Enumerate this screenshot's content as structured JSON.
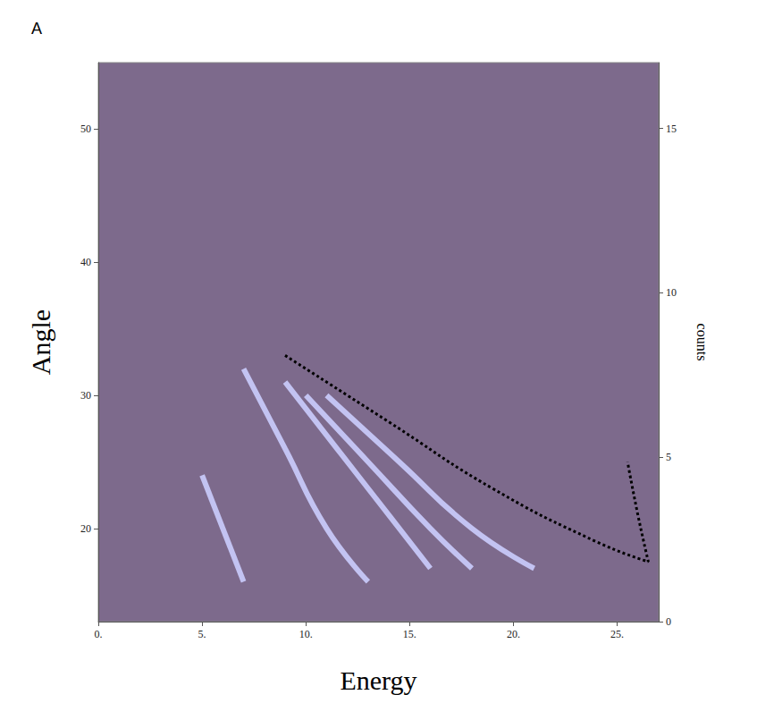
{
  "chart_data": {
    "type": "line",
    "title": "A",
    "x_label": "Energy",
    "y_label": "Angle",
    "y2_label": "counts",
    "xlim": [
      0,
      27
    ],
    "xticks": [
      {
        "value": 0,
        "label": "0."
      },
      {
        "value": 5,
        "label": "5."
      },
      {
        "value": 10,
        "label": "10."
      },
      {
        "value": 15,
        "label": "15."
      },
      {
        "value": 20,
        "label": "20."
      },
      {
        "value": 25,
        "label": "25."
      }
    ],
    "ylim": [
      13,
      55
    ],
    "yticks": [
      20,
      30,
      40,
      50
    ],
    "y2lim": [
      0,
      17
    ],
    "y2ticks": [
      0,
      5,
      10,
      15
    ],
    "grid": false,
    "series": [
      {
        "color": "#c3c3f2",
        "line_style": "solid",
        "marker": "none",
        "x": [
          5,
          6,
          7
        ],
        "values": [
          24,
          20,
          16
        ]
      },
      {
        "color": "#c3c3f2",
        "line_style": "solid",
        "marker": "none",
        "x": [
          7,
          9,
          11,
          13
        ],
        "values": [
          32,
          26,
          20,
          16
        ]
      },
      {
        "color": "#c3c3f2",
        "line_style": "solid",
        "marker": "none",
        "x": [
          9,
          11.5,
          14,
          16
        ],
        "values": [
          31,
          26,
          21,
          17
        ]
      },
      {
        "color": "#c3c3f2",
        "line_style": "solid",
        "marker": "none",
        "x": [
          10,
          13,
          16,
          18
        ],
        "values": [
          30,
          25,
          20,
          17
        ]
      },
      {
        "color": "#c3c3f2",
        "line_style": "solid",
        "marker": "none",
        "x": [
          11,
          14.5,
          18,
          21
        ],
        "values": [
          30,
          25,
          20,
          17
        ]
      },
      {
        "color": "#000000",
        "line_style": "dotted",
        "marker": "none",
        "x": [
          9,
          14,
          19,
          24,
          26.5,
          26,
          25.5
        ],
        "values": [
          33,
          28,
          23,
          19,
          17.5,
          21,
          25
        ]
      }
    ]
  }
}
